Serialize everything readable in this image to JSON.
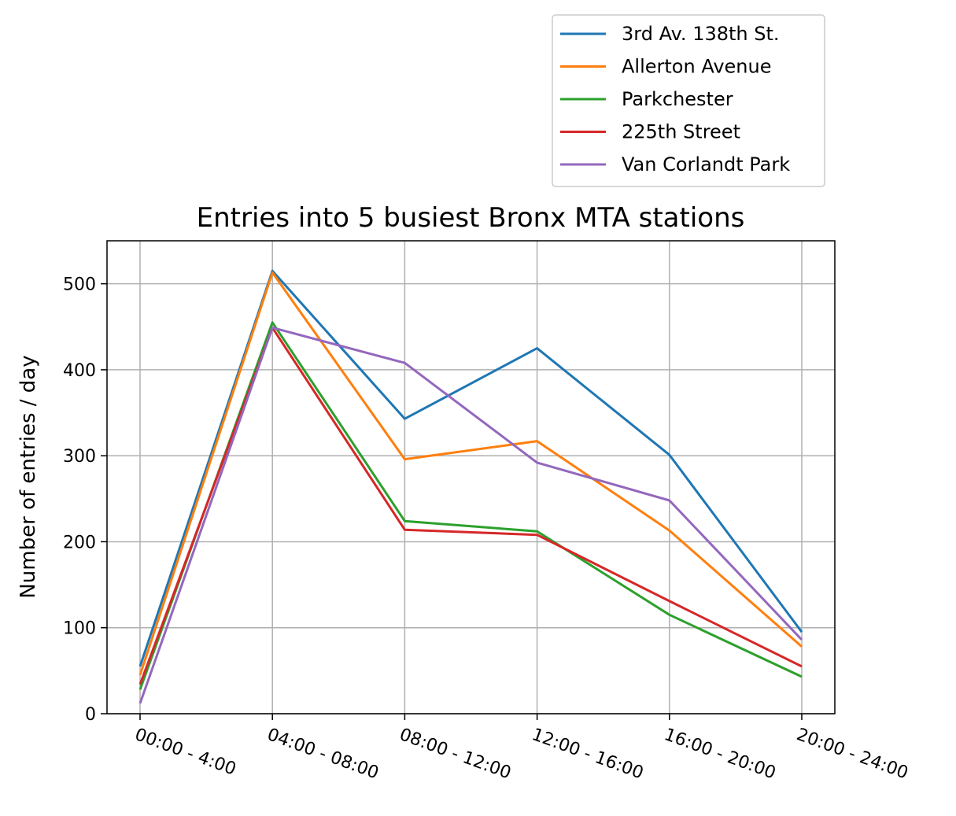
{
  "chart_data": {
    "type": "line",
    "title": "Entries into 5 busiest Bronx MTA stations",
    "xlabel": "",
    "ylabel": "Number of entries / day",
    "categories": [
      "00:00 - 4:00",
      "04:00 - 08:00",
      "08:00 - 12:00",
      "12:00 - 16:00",
      "16:00 - 20:00",
      "20:00 - 24:00"
    ],
    "ylim": [
      0,
      550
    ],
    "yticks": [
      0,
      100,
      200,
      300,
      400,
      500
    ],
    "grid": true,
    "legend_position": "above-right",
    "series": [
      {
        "name": "3rd Av. 138th St.",
        "color": "#1f77b4",
        "values": [
          55,
          515,
          343,
          425,
          301,
          95
        ]
      },
      {
        "name": "Allerton Avenue",
        "color": "#ff7f0e",
        "values": [
          45,
          513,
          296,
          317,
          213,
          78
        ]
      },
      {
        "name": "Parkchester",
        "color": "#2ca02c",
        "values": [
          28,
          455,
          224,
          212,
          115,
          43
        ]
      },
      {
        "name": "225th Street",
        "color": "#d62728",
        "values": [
          34,
          449,
          214,
          208,
          131,
          55
        ]
      },
      {
        "name": "Van Corlandt Park",
        "color": "#9467bd",
        "values": [
          12,
          449,
          408,
          292,
          248,
          86
        ]
      }
    ]
  }
}
